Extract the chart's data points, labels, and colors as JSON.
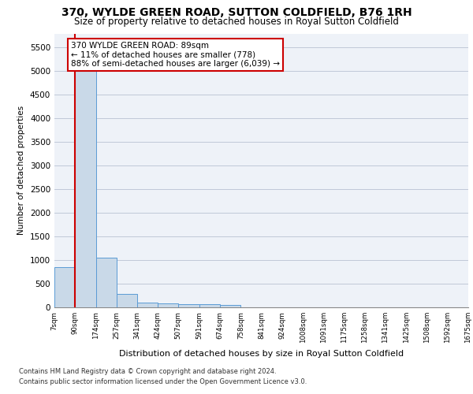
{
  "title": "370, WYLDE GREEN ROAD, SUTTON COLDFIELD, B76 1RH",
  "subtitle": "Size of property relative to detached houses in Royal Sutton Coldfield",
  "xlabel": "Distribution of detached houses by size in Royal Sutton Coldfield",
  "ylabel": "Number of detached properties",
  "footnote1": "Contains HM Land Registry data © Crown copyright and database right 2024.",
  "footnote2": "Contains public sector information licensed under the Open Government Licence v3.0.",
  "annotation_line1": "370 WYLDE GREEN ROAD: 89sqm",
  "annotation_line2": "← 11% of detached houses are smaller (778)",
  "annotation_line3": "88% of semi-detached houses are larger (6,039) →",
  "property_size": 89,
  "bin_edges": [
    7,
    90,
    174,
    257,
    341,
    424,
    507,
    591,
    674,
    758,
    841,
    924,
    1008,
    1091,
    1175,
    1258,
    1341,
    1425,
    1508,
    1592,
    1675
  ],
  "bin_labels": [
    "7sqm",
    "90sqm",
    "174sqm",
    "257sqm",
    "341sqm",
    "424sqm",
    "507sqm",
    "591sqm",
    "674sqm",
    "758sqm",
    "841sqm",
    "924sqm",
    "1008sqm",
    "1091sqm",
    "1175sqm",
    "1258sqm",
    "1341sqm",
    "1425sqm",
    "1508sqm",
    "1592sqm",
    "1675sqm"
  ],
  "bar_heights": [
    850,
    5500,
    1050,
    290,
    100,
    80,
    60,
    60,
    55,
    0,
    0,
    0,
    0,
    0,
    0,
    0,
    0,
    0,
    0,
    0
  ],
  "bar_color": "#c9d9e8",
  "bar_edge_color": "#5b9bd5",
  "red_line_color": "#cc0000",
  "annotation_box_edge_color": "#cc0000",
  "ylim": [
    0,
    5800
  ],
  "yticks": [
    0,
    500,
    1000,
    1500,
    2000,
    2500,
    3000,
    3500,
    4000,
    4500,
    5000,
    5500
  ],
  "grid_color": "#c0c8d8",
  "background_color": "#eef2f8",
  "title_fontsize": 10,
  "subtitle_fontsize": 8.5
}
